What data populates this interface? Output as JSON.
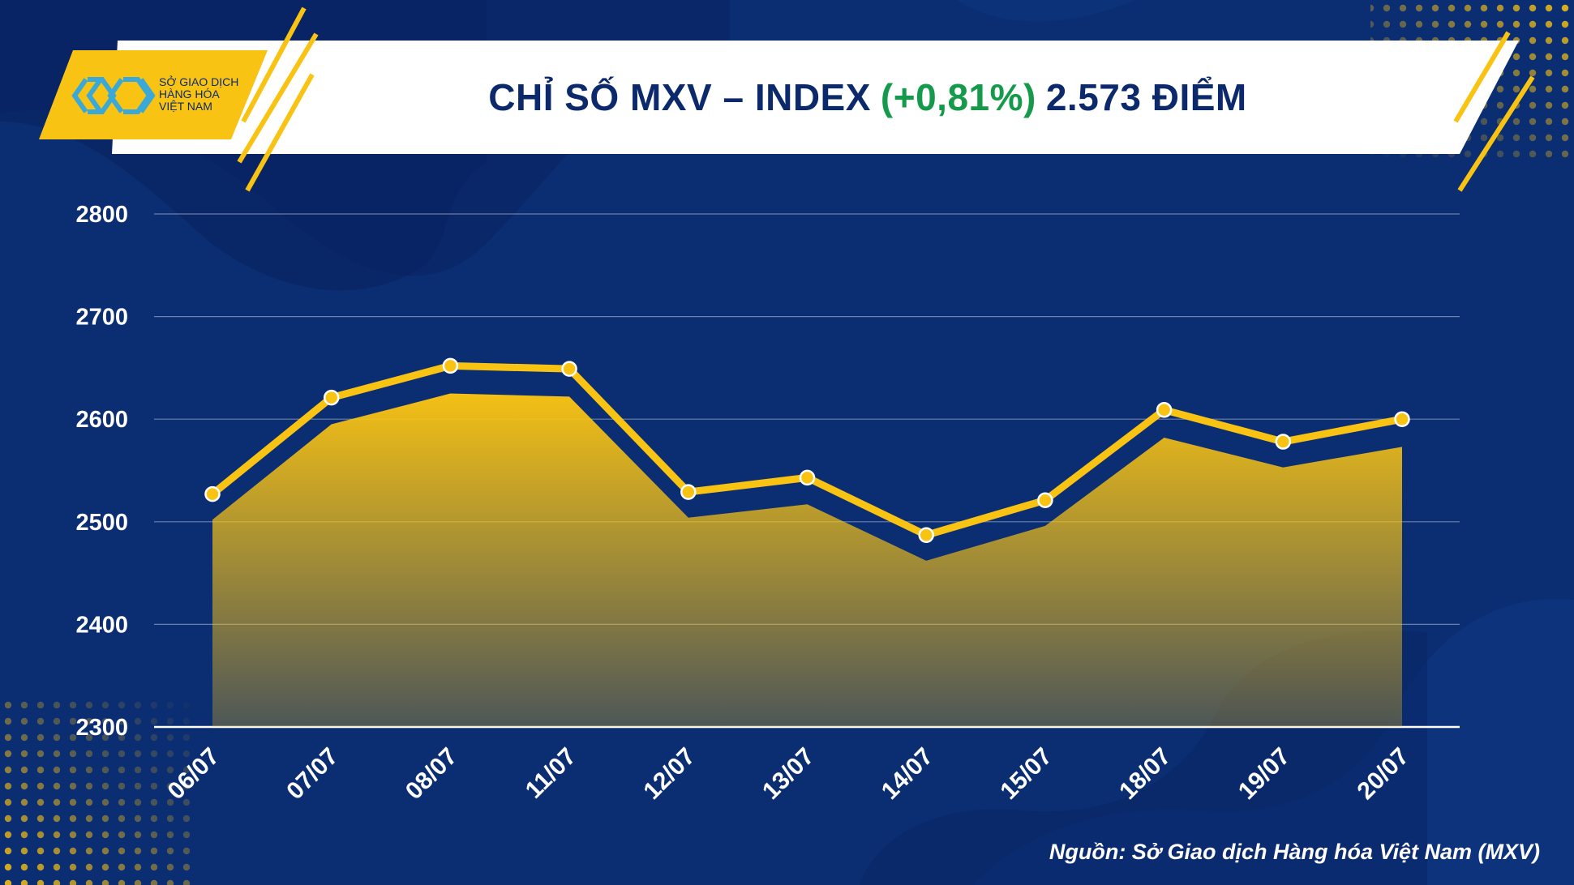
{
  "header": {
    "title_main": "CHỈ SỐ MXV – INDEX",
    "title_change": "(+0,81%)",
    "title_value": "2.573 ĐIỂM"
  },
  "logo": {
    "icon": "mxv-logo-icon",
    "line1": "SỞ GIAO DỊCH",
    "line2": "HÀNG HÓA",
    "line3": "VIỆT NAM"
  },
  "source": "Nguồn: Sở Giao dịch Hàng hóa Việt Nam (MXV)",
  "colors": {
    "background": "#0b2d72",
    "accent_yellow": "#f9c313",
    "change_green": "#149a4a",
    "title_text": "#0c2a6b"
  },
  "chart_data": {
    "type": "line",
    "categories": [
      "06/07",
      "07/07",
      "08/07",
      "11/07",
      "12/07",
      "13/07",
      "14/07",
      "15/07",
      "18/07",
      "19/07",
      "20/07"
    ],
    "values": [
      2527,
      2621,
      2652,
      2649,
      2529,
      2543,
      2487,
      2521,
      2609,
      2578,
      2600
    ],
    "area_values": [
      2502,
      2595,
      2625,
      2622,
      2504,
      2517,
      2462,
      2496,
      2582,
      2553,
      2573
    ],
    "yticks": [
      2300,
      2400,
      2500,
      2600,
      2700,
      2800
    ],
    "ylim": [
      2300,
      2800
    ],
    "grid": true,
    "legend": "none"
  }
}
